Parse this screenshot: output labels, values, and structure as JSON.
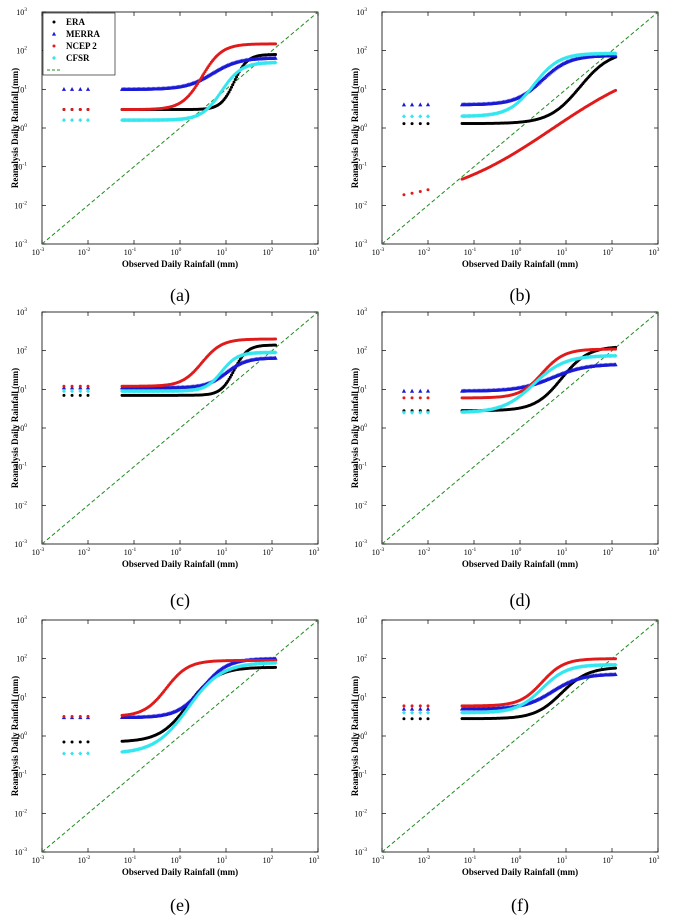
{
  "figure": {
    "legend": {
      "entries": [
        {
          "label": "ERA",
          "color": "#000000",
          "marker": "dot"
        },
        {
          "label": "MERRA",
          "color": "#1a1ad6",
          "marker": "triangle"
        },
        {
          "label": "NCEP 2",
          "color": "#e01b1b",
          "marker": "dot"
        },
        {
          "label": "CFSR",
          "color": "#35e6ef",
          "marker": "diamond"
        },
        {
          "label": "",
          "color": "#1e8c1e",
          "marker": "dashed-line"
        }
      ]
    },
    "reference_line_color": "#1e8c1e"
  },
  "chart_data": [
    {
      "type": "scatter",
      "panel": "(a)",
      "xscale": "log",
      "yscale": "log",
      "xlim": [
        0.001,
        1000
      ],
      "ylim": [
        0.001,
        1000
      ],
      "xticks": [
        -3,
        -2,
        -1,
        0,
        1,
        2,
        3
      ],
      "yticks": [
        -3,
        -2,
        -1,
        0,
        1,
        2,
        3
      ],
      "xlabel": "Observed Daily Rainfall (mm)",
      "ylabel": "Reanalysis Daily Rainfall (mm)",
      "legend": true,
      "series": [
        {
          "name": "ERA",
          "low": 3,
          "high": 80,
          "knee": 15,
          "curve": 3
        },
        {
          "name": "MERRA",
          "low": 10,
          "high": 65,
          "knee": 5,
          "curve": 1.5
        },
        {
          "name": "NCEP 2",
          "low": 3,
          "high": 150,
          "knee": 3,
          "curve": 2
        },
        {
          "name": "CFSR",
          "low": 1.6,
          "high": 50,
          "knee": 8,
          "curve": 2
        }
      ]
    },
    {
      "type": "scatter",
      "panel": "(b)",
      "xscale": "log",
      "yscale": "log",
      "xlim": [
        0.001,
        1000
      ],
      "ylim": [
        0.001,
        1000
      ],
      "xticks": [
        -3,
        -2,
        -1,
        0,
        1,
        2,
        3
      ],
      "yticks": [
        -3,
        -2,
        -1,
        0,
        1,
        2,
        3
      ],
      "xlabel": "Observed Daily Rainfall (mm)",
      "ylabel": "Reanalysis Daily Rainfall (mm)",
      "legend": false,
      "series": [
        {
          "name": "ERA",
          "low": 1.3,
          "high": 100,
          "knee": 20,
          "curve": 1.3
        },
        {
          "name": "MERRA",
          "low": 4,
          "high": 75,
          "knee": 3,
          "curve": 1.5
        },
        {
          "name": "NCEP 2",
          "low": 0.01,
          "high": 90,
          "knee": 5,
          "curve": 0.35
        },
        {
          "name": "CFSR",
          "low": 2,
          "high": 85,
          "knee": 2,
          "curve": 1.6
        }
      ]
    },
    {
      "type": "scatter",
      "panel": "(c)",
      "xscale": "log",
      "yscale": "log",
      "xlim": [
        0.001,
        1000
      ],
      "ylim": [
        0.001,
        1000
      ],
      "xticks": [
        -3,
        -2,
        -1,
        0,
        1,
        2,
        3
      ],
      "yticks": [
        -3,
        -2,
        -1,
        0,
        1,
        2,
        3
      ],
      "xlabel": "Observed Daily Rainfall (mm)",
      "ylabel": "Reanalysis Daily Rainfall (mm)",
      "legend": false,
      "series": [
        {
          "name": "ERA",
          "low": 7,
          "high": 140,
          "knee": 15,
          "curve": 3
        },
        {
          "name": "MERRA",
          "low": 11,
          "high": 65,
          "knee": 10,
          "curve": 2
        },
        {
          "name": "NCEP 2",
          "low": 12,
          "high": 200,
          "knee": 3,
          "curve": 2
        },
        {
          "name": "CFSR",
          "low": 9,
          "high": 90,
          "knee": 8,
          "curve": 2.5
        }
      ]
    },
    {
      "type": "scatter",
      "panel": "(d)",
      "xscale": "log",
      "yscale": "log",
      "xlim": [
        0.001,
        1000
      ],
      "ylim": [
        0.001,
        1000
      ],
      "xticks": [
        -3,
        -2,
        -1,
        0,
        1,
        2,
        3
      ],
      "yticks": [
        -3,
        -2,
        -1,
        0,
        1,
        2,
        3
      ],
      "xlabel": "Observed Daily Rainfall (mm)",
      "ylabel": "Reanalysis Daily Rainfall (mm)",
      "legend": false,
      "series": [
        {
          "name": "ERA",
          "low": 2.8,
          "high": 130,
          "knee": 8,
          "curve": 1.5
        },
        {
          "name": "MERRA",
          "low": 9,
          "high": 45,
          "knee": 5,
          "curve": 1.2
        },
        {
          "name": "NCEP 2",
          "low": 6,
          "high": 110,
          "knee": 3,
          "curve": 1.8
        },
        {
          "name": "CFSR",
          "low": 2.5,
          "high": 75,
          "knee": 2,
          "curve": 1.3
        }
      ]
    },
    {
      "type": "scatter",
      "panel": "(e)",
      "xscale": "log",
      "yscale": "log",
      "xlim": [
        0.001,
        1000
      ],
      "ylim": [
        0.001,
        1000
      ],
      "xticks": [
        -3,
        -2,
        -1,
        0,
        1,
        2,
        3
      ],
      "yticks": [
        -3,
        -2,
        -1,
        0,
        1,
        2,
        3
      ],
      "xlabel": "Observed Daily Rainfall (mm)",
      "ylabel": "Reanalysis Daily Rainfall (mm)",
      "legend": false,
      "series": [
        {
          "name": "ERA",
          "low": 0.7,
          "high": 60,
          "knee": 1.5,
          "curve": 1.4
        },
        {
          "name": "MERRA",
          "low": 3,
          "high": 100,
          "knee": 3,
          "curve": 1.6
        },
        {
          "name": "NCEP 2",
          "low": 3.2,
          "high": 90,
          "knee": 0.5,
          "curve": 1.8
        },
        {
          "name": "CFSR",
          "low": 0.35,
          "high": 80,
          "knee": 1.5,
          "curve": 1.2
        }
      ]
    },
    {
      "type": "scatter",
      "panel": "(f)",
      "xscale": "log",
      "yscale": "log",
      "xlim": [
        0.001,
        1000
      ],
      "ylim": [
        0.001,
        1000
      ],
      "xticks": [
        -3,
        -2,
        -1,
        0,
        1,
        2,
        3
      ],
      "yticks": [
        -3,
        -2,
        -1,
        0,
        1,
        2,
        3
      ],
      "xlabel": "Observed Daily Rainfall (mm)",
      "ylabel": "Reanalysis Daily Rainfall (mm)",
      "legend": false,
      "series": [
        {
          "name": "ERA",
          "low": 2.8,
          "high": 60,
          "knee": 8,
          "curve": 1.5
        },
        {
          "name": "MERRA",
          "low": 5,
          "high": 40,
          "knee": 5,
          "curve": 1.4
        },
        {
          "name": "NCEP 2",
          "low": 6,
          "high": 100,
          "knee": 3,
          "curve": 1.8
        },
        {
          "name": "CFSR",
          "low": 4,
          "high": 70,
          "knee": 3,
          "curve": 1.6
        }
      ]
    }
  ]
}
